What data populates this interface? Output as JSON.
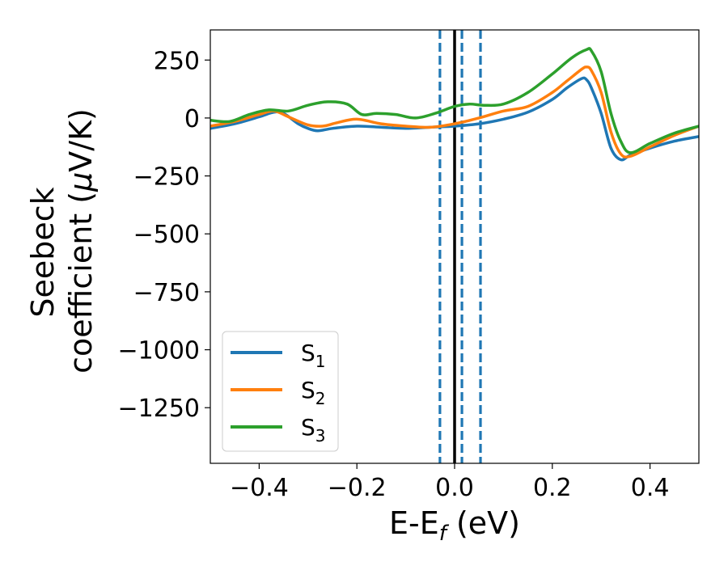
{
  "chart_data": {
    "type": "line",
    "xlabel": "E-E",
    "xlabel_sub": "f",
    "xlabel_unit": " (eV)",
    "ylabel_line1": "Seebeck",
    "ylabel_line2_pre": "coefficient  (",
    "ylabel_mu": "μ",
    "ylabel_line2_post": "V/K)",
    "xlim": [
      -0.5,
      0.5
    ],
    "ylim": [
      -1490,
      380
    ],
    "xticks": [
      -0.4,
      -0.2,
      0.0,
      0.2,
      0.4
    ],
    "xtick_labels": [
      "−0.4",
      "−0.2",
      "0.0",
      "0.2",
      "0.4"
    ],
    "yticks": [
      250,
      0,
      -250,
      -500,
      -750,
      -1000,
      -1250
    ],
    "ytick_labels": [
      "250",
      "0",
      "−250",
      "−500",
      "−750",
      "−1000",
      "−1250"
    ],
    "grid": false,
    "legend_position": "lower-left",
    "vlines": [
      {
        "x": 0.0,
        "style": "solid",
        "color": "#000000"
      },
      {
        "x": -0.03,
        "style": "dashed",
        "color": "#1f77b4"
      },
      {
        "x": 0.015,
        "style": "dashed",
        "color": "#1f77b4"
      },
      {
        "x": 0.053,
        "style": "dashed",
        "color": "#1f77b4"
      }
    ],
    "series": [
      {
        "name": "S",
        "sub": "1",
        "color": "#1f77b4",
        "x": [
          -0.5,
          -0.45,
          -0.4,
          -0.37,
          -0.35,
          -0.32,
          -0.3,
          -0.28,
          -0.25,
          -0.2,
          -0.15,
          -0.1,
          -0.05,
          0.0,
          0.05,
          0.1,
          0.15,
          0.2,
          0.23,
          0.26,
          0.27,
          0.28,
          0.3,
          0.32,
          0.34,
          0.36,
          0.4,
          0.45,
          0.5
        ],
        "y": [
          -45,
          -25,
          5,
          25,
          20,
          -25,
          -45,
          -55,
          -45,
          -35,
          -40,
          -45,
          -40,
          -35,
          -25,
          -5,
          25,
          80,
          130,
          170,
          165,
          130,
          20,
          -130,
          -180,
          -160,
          -130,
          -100,
          -80
        ]
      },
      {
        "name": "S",
        "sub": "2",
        "color": "#ff7f0e",
        "x": [
          -0.5,
          -0.45,
          -0.4,
          -0.37,
          -0.34,
          -0.3,
          -0.27,
          -0.24,
          -0.2,
          -0.15,
          -0.1,
          -0.05,
          0.0,
          0.05,
          0.1,
          0.15,
          0.2,
          0.23,
          0.26,
          0.27,
          0.28,
          0.3,
          0.32,
          0.34,
          0.36,
          0.4,
          0.45,
          0.5
        ],
        "y": [
          -35,
          -15,
          15,
          30,
          5,
          -30,
          -35,
          -20,
          -5,
          -25,
          -35,
          -40,
          -25,
          0,
          30,
          50,
          110,
          160,
          210,
          220,
          205,
          110,
          -60,
          -155,
          -165,
          -125,
          -75,
          -35
        ]
      },
      {
        "name": "S",
        "sub": "3",
        "color": "#2ca02c",
        "x": [
          -0.5,
          -0.46,
          -0.42,
          -0.38,
          -0.34,
          -0.3,
          -0.26,
          -0.22,
          -0.19,
          -0.16,
          -0.12,
          -0.08,
          -0.04,
          0.0,
          0.03,
          0.06,
          0.1,
          0.15,
          0.2,
          0.24,
          0.27,
          0.28,
          0.3,
          0.32,
          0.34,
          0.36,
          0.4,
          0.45,
          0.5
        ],
        "y": [
          -10,
          -15,
          15,
          35,
          30,
          55,
          70,
          60,
          15,
          20,
          15,
          0,
          20,
          50,
          60,
          55,
          60,
          110,
          190,
          260,
          295,
          290,
          200,
          20,
          -100,
          -150,
          -110,
          -65,
          -35
        ]
      }
    ]
  }
}
